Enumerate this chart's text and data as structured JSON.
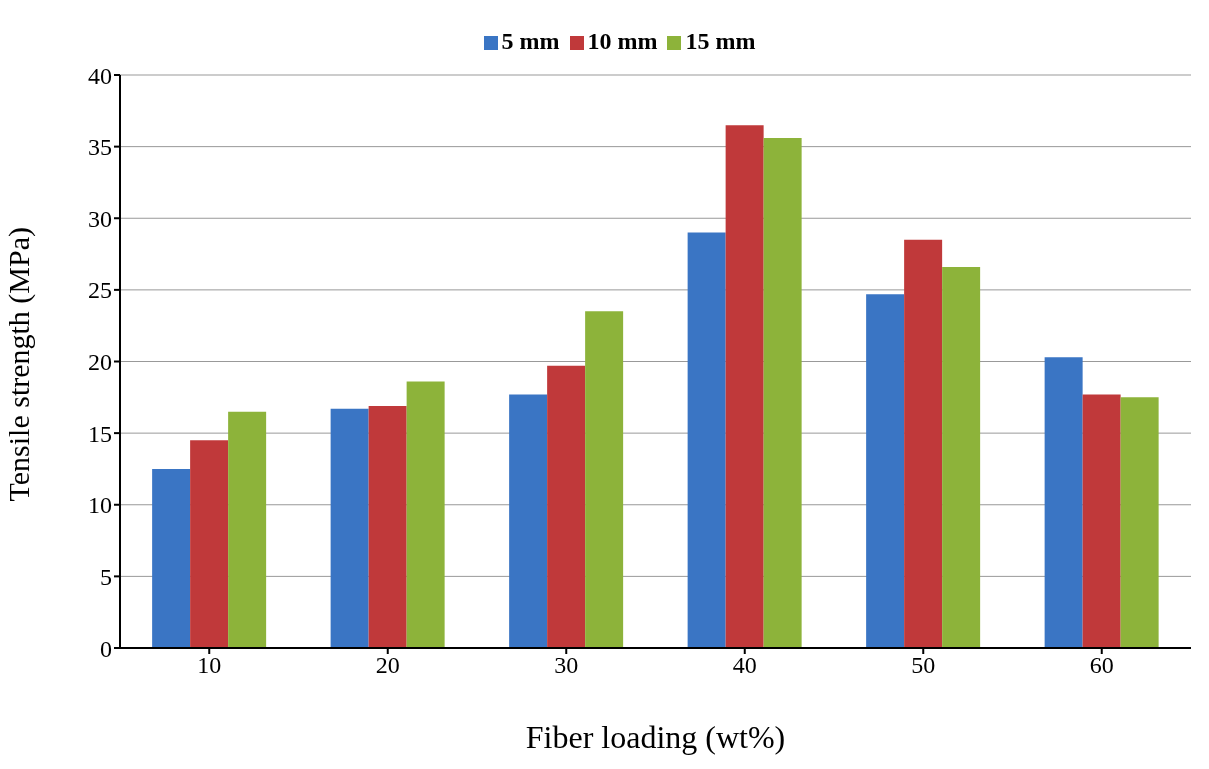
{
  "chart_data": {
    "type": "bar",
    "xlabel": "Fiber loading (wt%)",
    "ylabel": "Tensile strength (MPa)",
    "categories": [
      "10",
      "20",
      "30",
      "40",
      "50",
      "60"
    ],
    "series": [
      {
        "name": "5 mm",
        "color": "#3a75c4",
        "values": [
          12.5,
          16.7,
          17.7,
          29.0,
          24.7,
          20.3
        ]
      },
      {
        "name": "10 mm",
        "color": "#c0393a",
        "values": [
          14.5,
          16.9,
          19.7,
          36.5,
          28.5,
          17.7
        ]
      },
      {
        "name": "15 mm",
        "color": "#8db33a",
        "values": [
          16.5,
          18.6,
          23.5,
          35.6,
          26.6,
          17.5
        ]
      }
    ],
    "ylim": [
      0,
      40
    ],
    "yticks": [
      0,
      5,
      10,
      15,
      20,
      25,
      30,
      35,
      40
    ],
    "grid": "y",
    "legend": "top"
  }
}
